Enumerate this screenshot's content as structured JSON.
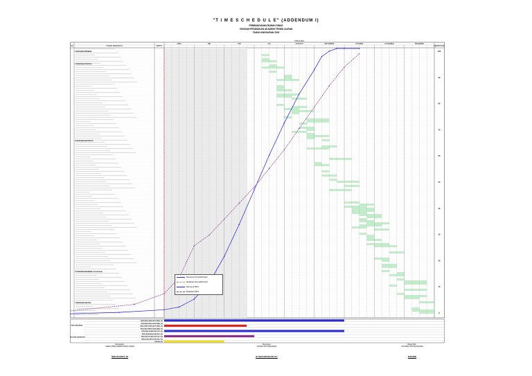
{
  "header": {
    "title": "\"T I M E  S C H E D U L E\" (ADDENDUM I)",
    "subtitle": "PEMBANGUNAN RUMAH DINAS",
    "owner": "YAYASAN PENDIDIKAN AKADEMI TEKNIK ALIRAN",
    "year": "TAHUN ANGGARAN 2016"
  },
  "table": {
    "col_no": "NO",
    "col_work": "URAIAN PEKERJAAN",
    "col_weight": "BOBOT",
    "col_percent": "PERSENTASE",
    "time_header": "TAHUN 2016",
    "months": [
      "APRIL",
      "MEI",
      "JUNI",
      "JULI",
      "AGUSTUS",
      "SEPTEMBER",
      "OKTOBER",
      "NOVEMBER",
      "DESEMBER"
    ],
    "section_rows": [
      "I  PEKERJAAN PERSIAPAN",
      "II  PEKERJAAN STRUKTUR",
      "III  PEKERJAAN ARSITEKTUR",
      "IV  PEKERJAAN MEKANIKAL & ELEKTRIKAL",
      "V  PEKERJAAN LAIN-LAIN"
    ],
    "right_scale": [
      "100",
      "90",
      "80",
      "70",
      "60",
      "50",
      "40",
      "30",
      "20",
      "10",
      "0"
    ]
  },
  "legend": {
    "items": [
      {
        "label": "Rencana Kumulatif Awal",
        "color": "#2a2ad6"
      },
      {
        "label": "Realisasi Kumulatif Awal",
        "color": "#d05a1e"
      },
      {
        "label": "Rencana MC0",
        "color": "#1a1ae0"
      },
      {
        "label": "Realisasi MC0",
        "color": "#8a3a8a"
      }
    ]
  },
  "summary": {
    "left_labels": [
      "RENCANA AWAL",
      "RENCANA ADDENDUM"
    ],
    "row_labels": [
      "RENCANA KUMULATIF AWAL (%)",
      "RENCANA MINGGUAN AWAL (%)",
      "REALISASI KUMULATIF AWAL (%)",
      "REALISASI MINGGUAN AWAL (%)",
      "RENCANA KUMULATIF MC0 (%)",
      "RENCANA MINGGUAN MC0 (%)",
      "REALISASI KUMULATIF MC0 (%)",
      "REALISASI MINGGUAN MC0 (%)",
      "DEVIASI (%)"
    ]
  },
  "signatures": [
    {
      "place": "Mengetahui,",
      "role": "KEPALA BIRO ADMINISTRASI UMUM",
      "name": "IWAN SUGIARTO, SH"
    },
    {
      "place": "Menyetujui,",
      "role": "KONSULTAN PENGAWAS",
      "name": "IR. ANDI SURYANA MS, M.T."
    },
    {
      "place": "Dibuat Oleh,",
      "role": "KONTRAKTOR PELAKSANA",
      "name": "SUMARNO"
    }
  ],
  "colors": {
    "grid": "#b5b5b5",
    "bar": "#c6efce",
    "plan_curve": "#1a1ae0",
    "real_curve": "#8a3a8a",
    "blue_row": "#2b2bd8",
    "red_row": "#e02020",
    "purple_row": "#8b2f8b",
    "yellow_row": "#f0e020"
  }
}
